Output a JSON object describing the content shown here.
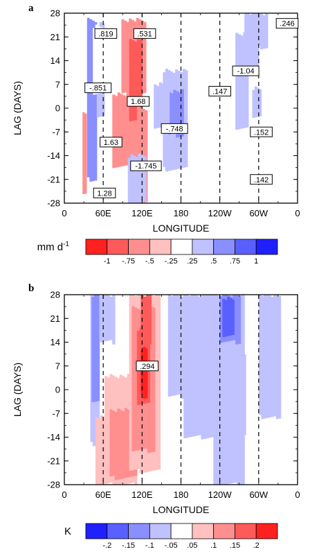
{
  "chart_data": [
    {
      "type": "heatmap",
      "panel_label": "a",
      "xlabel": "LONGITUDE",
      "ylabel": "LAG (DAYS)",
      "x_ticks": [
        "0",
        "60E",
        "120E",
        "180",
        "120W",
        "60W",
        "0"
      ],
      "y_ticks": [
        "28",
        "21",
        "14",
        "7",
        "0",
        "-7",
        "-14",
        "-21",
        "-28"
      ],
      "xlim": [
        0,
        360
      ],
      "ylim": [
        -28,
        28
      ],
      "dashed_lines_x": [
        60,
        120,
        180,
        240,
        300
      ],
      "colorbar": {
        "unit_text": "mm d",
        "unit_superscript": "-1",
        "tick_labels": [
          "-1",
          "-.75",
          "-.5",
          "-.25",
          ".25",
          ".5",
          ".75",
          "1"
        ],
        "colors": [
          "#ff2020",
          "#ff5a5a",
          "#ff8f8f",
          "#ffc0c0",
          "#ffffff",
          "#bfc2ff",
          "#8a8fff",
          "#5a5fff",
          "#2020ff"
        ]
      },
      "regions": [
        {
          "level": 2,
          "x": [
            35,
            50
          ],
          "y": [
            -21,
            26
          ]
        },
        {
          "level": 1,
          "x": [
            50,
            62
          ],
          "y": [
            -3,
            25
          ]
        },
        {
          "level": 0,
          "x": [
            44,
            66
          ],
          "y": [
            4,
            24
          ]
        },
        {
          "level": -2,
          "x": [
            28,
            34
          ],
          "y": [
            -25,
            -1
          ]
        },
        {
          "level": -2,
          "x": [
            74,
            118
          ],
          "y": [
            -17,
            4
          ]
        },
        {
          "level": -2,
          "x": [
            88,
            126
          ],
          "y": [
            4,
            26
          ]
        },
        {
          "level": -3,
          "x": [
            100,
            120
          ],
          "y": [
            -4,
            20
          ]
        },
        {
          "level": -2,
          "x": [
            112,
            128
          ],
          "y": [
            -28,
            0
          ]
        },
        {
          "level": 1,
          "x": [
            98,
            126
          ],
          "y": [
            -28,
            -14
          ]
        },
        {
          "level": 1,
          "x": [
            152,
            190
          ],
          "y": [
            -18,
            11
          ]
        },
        {
          "level": 2,
          "x": [
            160,
            184
          ],
          "y": [
            -8,
            5
          ]
        },
        {
          "level": 1,
          "x": [
            138,
            162
          ],
          "y": [
            -6,
            7
          ]
        },
        {
          "level": 1,
          "x": [
            264,
            284
          ],
          "y": [
            -6,
            22
          ]
        },
        {
          "level": 1,
          "x": [
            278,
            300
          ],
          "y": [
            10,
            28
          ]
        },
        {
          "level": 1,
          "x": [
            294,
            314
          ],
          "y": [
            18,
            28
          ]
        },
        {
          "level": 1,
          "x": [
            290,
            304
          ],
          "y": [
            -3,
            6
          ]
        }
      ],
      "annotations": [
        {
          "text": ".819",
          "x": 64,
          "y": 22
        },
        {
          "text": ".531",
          "x": 124,
          "y": 22
        },
        {
          "text": ".246",
          "x": 344,
          "y": 25
        },
        {
          "text": "-1.04",
          "x": 280,
          "y": 11
        },
        {
          "text": "-.851",
          "x": 52,
          "y": 6
        },
        {
          "text": ".147",
          "x": 240,
          "y": 5
        },
        {
          "text": "1.68",
          "x": 114,
          "y": 2
        },
        {
          "text": "-.748",
          "x": 170,
          "y": -6
        },
        {
          "text": ".152",
          "x": 304,
          "y": -7
        },
        {
          "text": "1.63",
          "x": 72,
          "y": -10
        },
        {
          "text": "-1.745",
          "x": 126,
          "y": -17
        },
        {
          "text": ".142",
          "x": 304,
          "y": -21
        },
        {
          "text": "1.28",
          "x": 62,
          "y": -25
        }
      ]
    },
    {
      "type": "heatmap",
      "panel_label": "b",
      "xlabel": "LONGITUDE",
      "ylabel": "LAG (DAYS)",
      "x_ticks": [
        "0",
        "60E",
        "120E",
        "180",
        "120W",
        "60W",
        "0"
      ],
      "y_ticks": [
        "28",
        "21",
        "14",
        "7",
        "0",
        "-7",
        "-14",
        "-21",
        "-28"
      ],
      "xlim": [
        0,
        360
      ],
      "ylim": [
        -28,
        28
      ],
      "dashed_lines_x": [
        60,
        120,
        180,
        240,
        300
      ],
      "colorbar": {
        "unit_text": "K",
        "unit_superscript": "",
        "tick_labels": [
          "-.2",
          "-.15",
          "-.1",
          "-.05",
          ".05",
          ".1",
          ".15",
          ".2"
        ],
        "colors": [
          "#2020ff",
          "#5a5fff",
          "#8a8fff",
          "#bfc2ff",
          "#ffffff",
          "#ffc0c0",
          "#ff8f8f",
          "#ff5a5a",
          "#ff2020"
        ]
      },
      "regions": [
        {
          "level": -1,
          "x": [
            40,
            54
          ],
          "y": [
            -16,
            28
          ]
        },
        {
          "level": -2,
          "x": [
            42,
            54
          ],
          "y": [
            -4,
            28
          ]
        },
        {
          "level": -1,
          "x": [
            54,
            78
          ],
          "y": [
            14,
            28
          ]
        },
        {
          "level": 1,
          "x": [
            48,
            112
          ],
          "y": [
            -28,
            -8
          ]
        },
        {
          "level": 1,
          "x": [
            62,
            112
          ],
          "y": [
            -10,
            4
          ]
        },
        {
          "level": 2,
          "x": [
            70,
            112
          ],
          "y": [
            -26,
            -6
          ]
        },
        {
          "level": 1,
          "x": [
            100,
            148
          ],
          "y": [
            -24,
            28
          ]
        },
        {
          "level": 2,
          "x": [
            104,
            140
          ],
          "y": [
            -18,
            24
          ]
        },
        {
          "level": 3,
          "x": [
            112,
            132
          ],
          "y": [
            -4,
            18
          ]
        },
        {
          "level": 4,
          "x": [
            118,
            128
          ],
          "y": [
            -2,
            12
          ]
        },
        {
          "level": 3,
          "x": [
            118,
            134
          ],
          "y": [
            14,
            28
          ]
        },
        {
          "level": -1,
          "x": [
            160,
            230
          ],
          "y": [
            -2,
            28
          ]
        },
        {
          "level": -1,
          "x": [
            184,
            280
          ],
          "y": [
            -14,
            10
          ]
        },
        {
          "level": -1,
          "x": [
            230,
            278
          ],
          "y": [
            -28,
            -10
          ]
        },
        {
          "level": -1,
          "x": [
            240,
            252
          ],
          "y": [
            -28,
            -22
          ]
        },
        {
          "level": -1,
          "x": [
            212,
            278
          ],
          "y": [
            4,
            28
          ]
        },
        {
          "level": -2,
          "x": [
            240,
            272
          ],
          "y": [
            14,
            28
          ]
        },
        {
          "level": -3,
          "x": [
            244,
            262
          ],
          "y": [
            16,
            27
          ]
        },
        {
          "level": -1,
          "x": [
            300,
            334
          ],
          "y": [
            -8,
            28
          ]
        },
        {
          "level": -1,
          "x": [
            316,
            334
          ],
          "y": [
            -8,
            20
          ]
        }
      ],
      "annotations": [
        {
          "text": ".294",
          "x": 128,
          "y": 7
        }
      ]
    }
  ]
}
